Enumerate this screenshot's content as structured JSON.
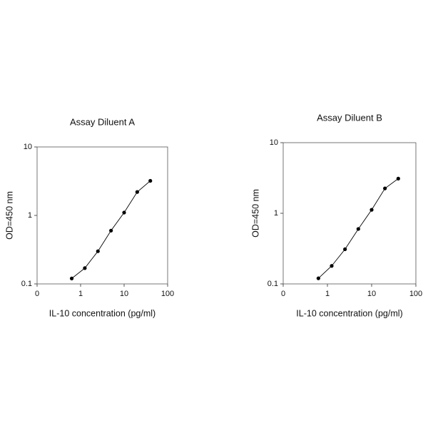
{
  "chart_data": [
    {
      "type": "line",
      "title": "Assay Diluent A",
      "xlabel": "IL-10 concentration (pg/ml)",
      "ylabel": "OD=450 nm",
      "xscale": "log",
      "yscale": "log",
      "color": "#000000",
      "x": [
        0.625,
        1.25,
        2.5,
        5,
        10,
        20,
        40
      ],
      "values": [
        0.12,
        0.17,
        0.3,
        0.6,
        1.1,
        2.2,
        3.2
      ],
      "xlim": [
        0.1,
        100
      ],
      "xticks": [
        {
          "value": 0.1,
          "label": "0"
        },
        1,
        10,
        100
      ],
      "ylim": [
        0.1,
        10
      ],
      "yticks": [
        0.1,
        1,
        10
      ]
    },
    {
      "type": "line",
      "title": "Assay Diluent B",
      "xlabel": "IL-10 concentration (pg/ml)",
      "ylabel": "OD=450 nm",
      "xscale": "log",
      "yscale": "log",
      "color": "#000000",
      "x": [
        0.625,
        1.25,
        2.5,
        5,
        10,
        20,
        40
      ],
      "values": [
        0.12,
        0.18,
        0.31,
        0.6,
        1.12,
        2.25,
        3.1
      ],
      "xlim": [
        0.1,
        100
      ],
      "xticks": [
        {
          "value": 0.1,
          "label": "0"
        },
        1,
        10,
        100
      ],
      "ylim": [
        0.1,
        10
      ],
      "yticks": [
        0.1,
        1,
        10
      ]
    }
  ]
}
